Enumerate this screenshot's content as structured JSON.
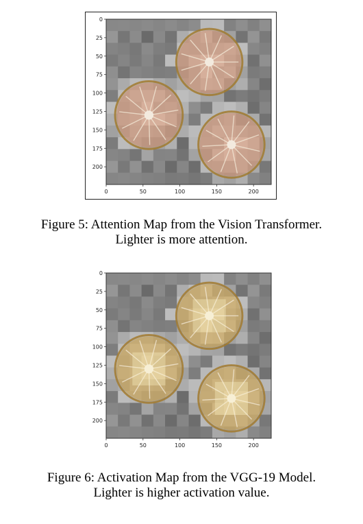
{
  "figures": [
    {
      "id": "fig5",
      "caption_line1": "Figure 5: Attention Map from the Vision Transformer.",
      "caption_line2": "Lighter is more attention.",
      "x_ticks": [
        "0",
        "50",
        "100",
        "150",
        "200"
      ],
      "y_ticks": [
        "0",
        "25",
        "50",
        "75",
        "100",
        "125",
        "150",
        "175",
        "200"
      ],
      "overlay_color": "#ffffff",
      "fruit_tint": "#c98a6a"
    },
    {
      "id": "fig6",
      "caption_line1": "Figure 6: Activation Map from the VGG-19 Model.",
      "caption_line2": "Lighter is higher activation value.",
      "x_ticks": [
        "0",
        "50",
        "100",
        "150",
        "200"
      ],
      "y_ticks": [
        "0",
        "25",
        "50",
        "75",
        "100",
        "125",
        "150",
        "175",
        "200"
      ],
      "overlay_color": "#fff6c8",
      "fruit_tint": "#c9a04a"
    }
  ]
}
